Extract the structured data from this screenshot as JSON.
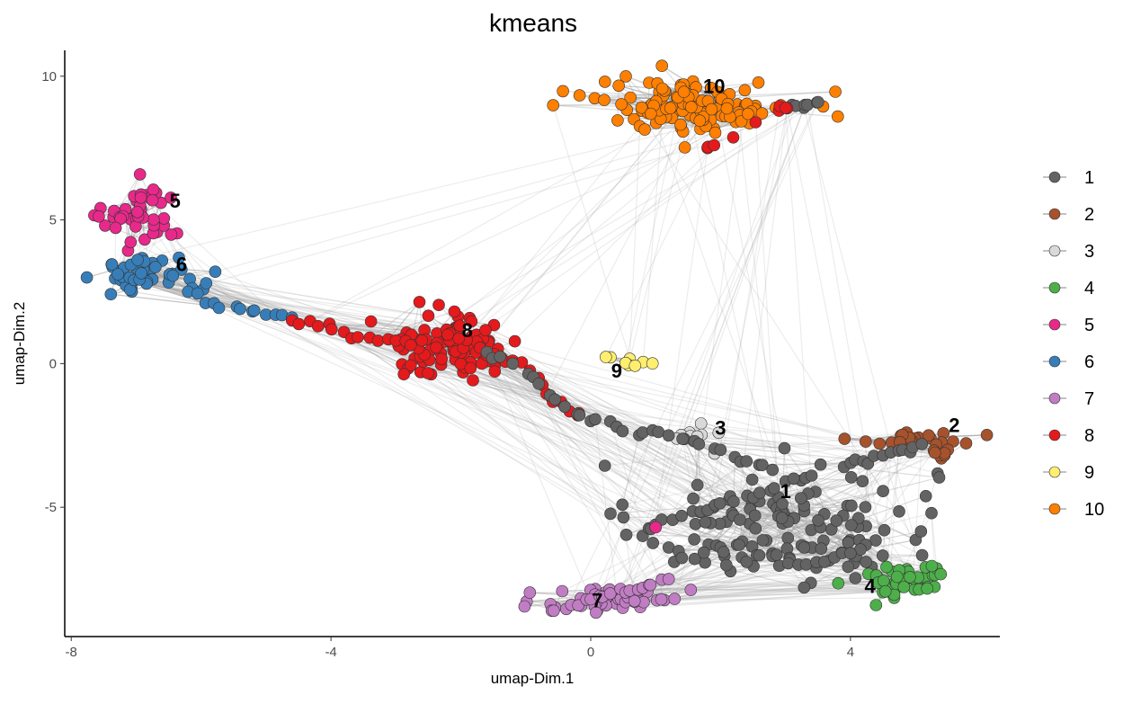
{
  "chart_data": {
    "type": "scatter",
    "title": "kmeans",
    "xlabel": "umap-Dim.1",
    "ylabel": "umap-Dim.2",
    "xlim": [
      -8.1,
      6.3
    ],
    "ylim": [
      -9.5,
      10.9
    ],
    "x_ticks": [
      -8,
      -4,
      0,
      4
    ],
    "y_ticks": [
      -5,
      0,
      5,
      10
    ],
    "tick_labels_x": [
      "-8",
      "-4",
      "0",
      "4"
    ],
    "tick_labels_y": [
      "-5",
      "0",
      "5",
      "10"
    ],
    "grid": false,
    "legend_position": "right",
    "point_outline_color": "#333333",
    "edge_color": "#9e9e9e",
    "clusters": [
      {
        "label": "1",
        "color": "#636363",
        "cx": 3.0,
        "cy": -5.6,
        "sx": 1.15,
        "sy": 1.05,
        "n": 120,
        "label_x": 3.0,
        "label_y": -4.5
      },
      {
        "label": "2",
        "color": "#A6522C",
        "cx": 5.0,
        "cy": -2.6,
        "sx": 0.45,
        "sy": 0.15,
        "n": 22,
        "label_x": 5.6,
        "label_y": -2.2
      },
      {
        "label": "3",
        "color": "#D9D9D9",
        "cx": 1.7,
        "cy": -2.6,
        "sx": 0.25,
        "sy": 0.2,
        "n": 12,
        "label_x": 2.0,
        "label_y": -2.3
      },
      {
        "label": "4",
        "color": "#4DAF4A",
        "cx": 4.8,
        "cy": -7.5,
        "sx": 0.35,
        "sy": 0.35,
        "n": 45,
        "label_x": 4.3,
        "label_y": -7.8
      },
      {
        "label": "5",
        "color": "#E7298A",
        "cx": -6.9,
        "cy": 5.1,
        "sx": 0.3,
        "sy": 0.55,
        "n": 45,
        "label_x": -6.4,
        "label_y": 5.6
      },
      {
        "label": "6",
        "color": "#377EB8",
        "cx": -6.8,
        "cy": 3.1,
        "sx": 0.4,
        "sy": 0.3,
        "n": 48,
        "label_x": -6.3,
        "label_y": 3.4
      },
      {
        "label": "7",
        "color": "#C17DC4",
        "cx": 0.4,
        "cy": -8.2,
        "sx": 0.55,
        "sy": 0.3,
        "n": 45,
        "label_x": 0.1,
        "label_y": -8.3
      },
      {
        "label": "8",
        "color": "#E41A1C",
        "cx": -2.1,
        "cy": 0.6,
        "sx": 0.5,
        "sy": 0.55,
        "n": 95,
        "label_x": -1.9,
        "label_y": 1.1
      },
      {
        "label": "9",
        "color": "#FFEE6F",
        "cx": 0.6,
        "cy": 0.0,
        "sx": 0.2,
        "sy": 0.12,
        "n": 8,
        "label_x": 0.4,
        "label_y": -0.3
      },
      {
        "label": "10",
        "color": "#FF7F00",
        "cx": 1.6,
        "cy": 9.0,
        "sx": 0.75,
        "sy": 0.45,
        "n": 140,
        "label_x": 1.9,
        "label_y": 9.6
      }
    ],
    "extra_paths": [
      {
        "cluster": "6",
        "x": [
          -6.2,
          -5.8,
          -5.4,
          -5.0,
          -4.6
        ],
        "y": [
          2.5,
          2.1,
          1.9,
          1.7,
          1.6
        ]
      },
      {
        "cluster": "8",
        "x": [
          -4.6,
          -4.2,
          -3.8,
          -3.4,
          -3.0,
          -2.6
        ],
        "y": [
          1.5,
          1.3,
          1.1,
          0.9,
          0.8,
          0.8
        ]
      },
      {
        "cluster": "8",
        "x": [
          -1.6,
          -1.2,
          -0.8,
          -0.6,
          -0.4,
          -0.2
        ],
        "y": [
          0.3,
          0.1,
          -0.5,
          -1.2,
          -1.5,
          -1.8
        ]
      },
      {
        "cluster": "1",
        "x": [
          -1.6,
          -1.2,
          -0.8,
          -0.4,
          0.0,
          0.4,
          0.8,
          1.2,
          1.6,
          2.0,
          2.4,
          2.8
        ],
        "y": [
          0.4,
          0.0,
          -0.7,
          -1.5,
          -2.0,
          -2.2,
          -2.4,
          -2.5,
          -2.7,
          -3.0,
          -3.4,
          -3.7
        ]
      },
      {
        "cluster": "1",
        "x": [
          3.9,
          4.2,
          4.5,
          4.8,
          5.1
        ],
        "y": [
          -3.6,
          -3.4,
          -3.2,
          -3.0,
          -2.8
        ]
      },
      {
        "cluster": "1",
        "x": [
          1.2,
          1.6,
          2.0,
          2.4,
          2.8,
          3.2,
          3.6,
          4.0
        ],
        "y": [
          -6.4,
          -6.8,
          -6.4,
          -6.9,
          -6.7,
          -7.0,
          -6.9,
          -6.6
        ]
      },
      {
        "cluster": "1",
        "x": [
          0.8,
          1.0,
          1.4,
          1.8,
          2.2,
          2.6,
          3.0,
          3.4
        ],
        "y": [
          -6.0,
          -5.6,
          -5.3,
          -5.1,
          -4.8,
          -4.5,
          -4.1,
          -3.9
        ]
      },
      {
        "cluster": "1",
        "x": [
          3.1,
          3.3,
          3.5
        ],
        "y": [
          9.0,
          9.0,
          9.1
        ]
      },
      {
        "cluster": "7",
        "x": [
          -0.6,
          -0.3,
          0.0,
          0.3,
          0.6,
          0.9,
          1.2
        ],
        "y": [
          -8.6,
          -8.4,
          -8.2,
          -8.0,
          -7.9,
          -7.7,
          -7.5
        ]
      },
      {
        "cluster": "2",
        "x": [
          5.4,
          5.5,
          5.3
        ],
        "y": [
          -3.3,
          -3.0,
          -3.1
        ]
      },
      {
        "cluster": "8",
        "x": [
          1.8,
          1.9,
          2.9,
          3.0
        ],
        "y": [
          7.5,
          7.6,
          8.8,
          8.9
        ]
      },
      {
        "cluster": "5",
        "x": [
          1.0
        ],
        "y": [
          -5.7
        ]
      }
    ],
    "legend": [
      {
        "label": "1",
        "color": "#636363"
      },
      {
        "label": "2",
        "color": "#A6522C"
      },
      {
        "label": "3",
        "color": "#D9D9D9"
      },
      {
        "label": "4",
        "color": "#4DAF4A"
      },
      {
        "label": "5",
        "color": "#E7298A"
      },
      {
        "label": "6",
        "color": "#377EB8"
      },
      {
        "label": "7",
        "color": "#C17DC4"
      },
      {
        "label": "8",
        "color": "#E41A1C"
      },
      {
        "label": "9",
        "color": "#FFEE6F"
      },
      {
        "label": "10",
        "color": "#FF7F00"
      }
    ]
  }
}
